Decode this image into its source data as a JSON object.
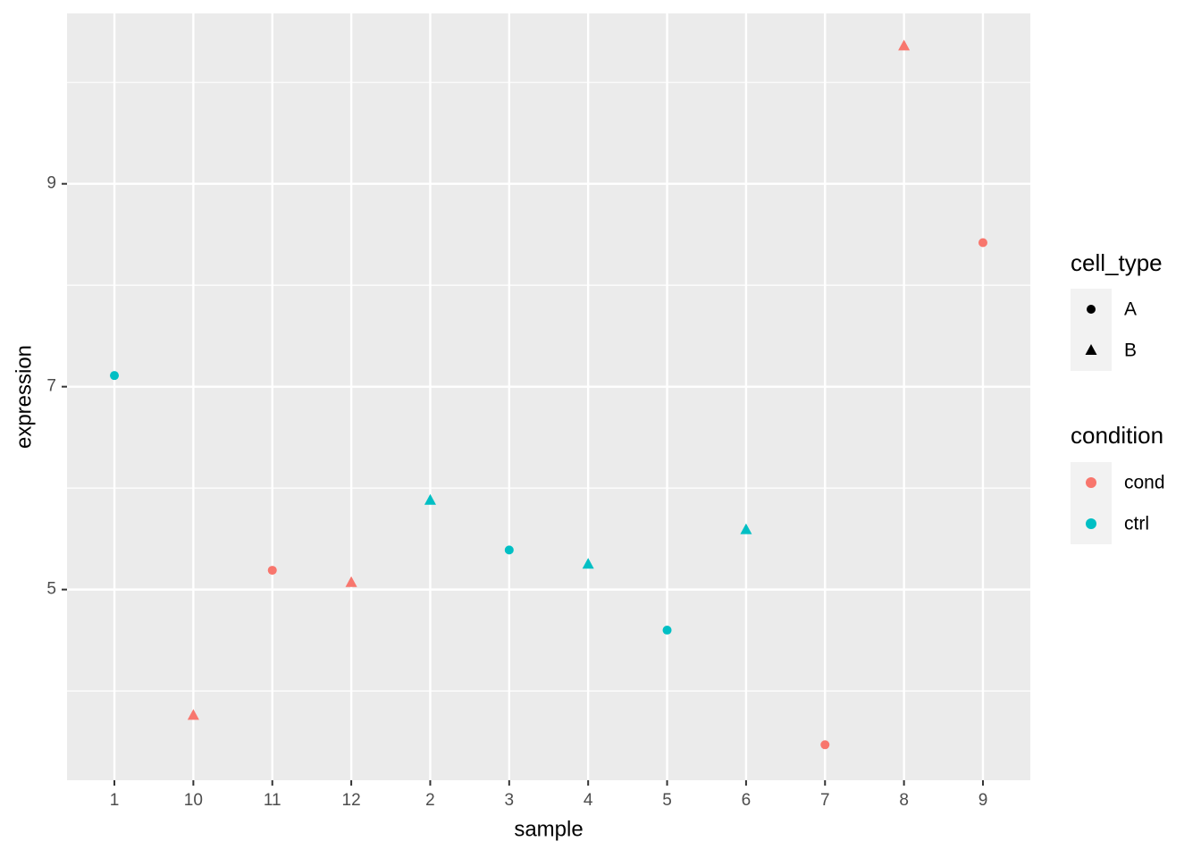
{
  "chart_data": {
    "type": "scatter",
    "x_label": "sample",
    "y_label": "expression",
    "categories": [
      "1",
      "10",
      "11",
      "12",
      "2",
      "3",
      "4",
      "5",
      "6",
      "7",
      "8",
      "9"
    ],
    "values": [
      7.11,
      3.76,
      5.19,
      5.07,
      5.88,
      5.39,
      5.25,
      4.6,
      5.59,
      3.47,
      10.36,
      8.42
    ],
    "cell_type": [
      "A",
      "B",
      "A",
      "B",
      "B",
      "A",
      "B",
      "A",
      "B",
      "A",
      "B",
      "A"
    ],
    "condition": [
      "ctrl",
      "cond",
      "cond",
      "cond",
      "ctrl",
      "ctrl",
      "ctrl",
      "ctrl",
      "ctrl",
      "cond",
      "cond",
      "cond"
    ],
    "ylim": [
      3.12,
      10.68
    ],
    "yticks": [
      5,
      7,
      9
    ],
    "y_minor_grid": [
      4,
      6,
      8,
      10
    ],
    "grid": true,
    "shape_legend": {
      "title": "cell_type",
      "labels": [
        "A",
        "B"
      ]
    },
    "color_legend": {
      "title": "condition",
      "labels": [
        "cond",
        "ctrl"
      ],
      "colors": [
        "#F8766D",
        "#00BFC4"
      ]
    }
  }
}
